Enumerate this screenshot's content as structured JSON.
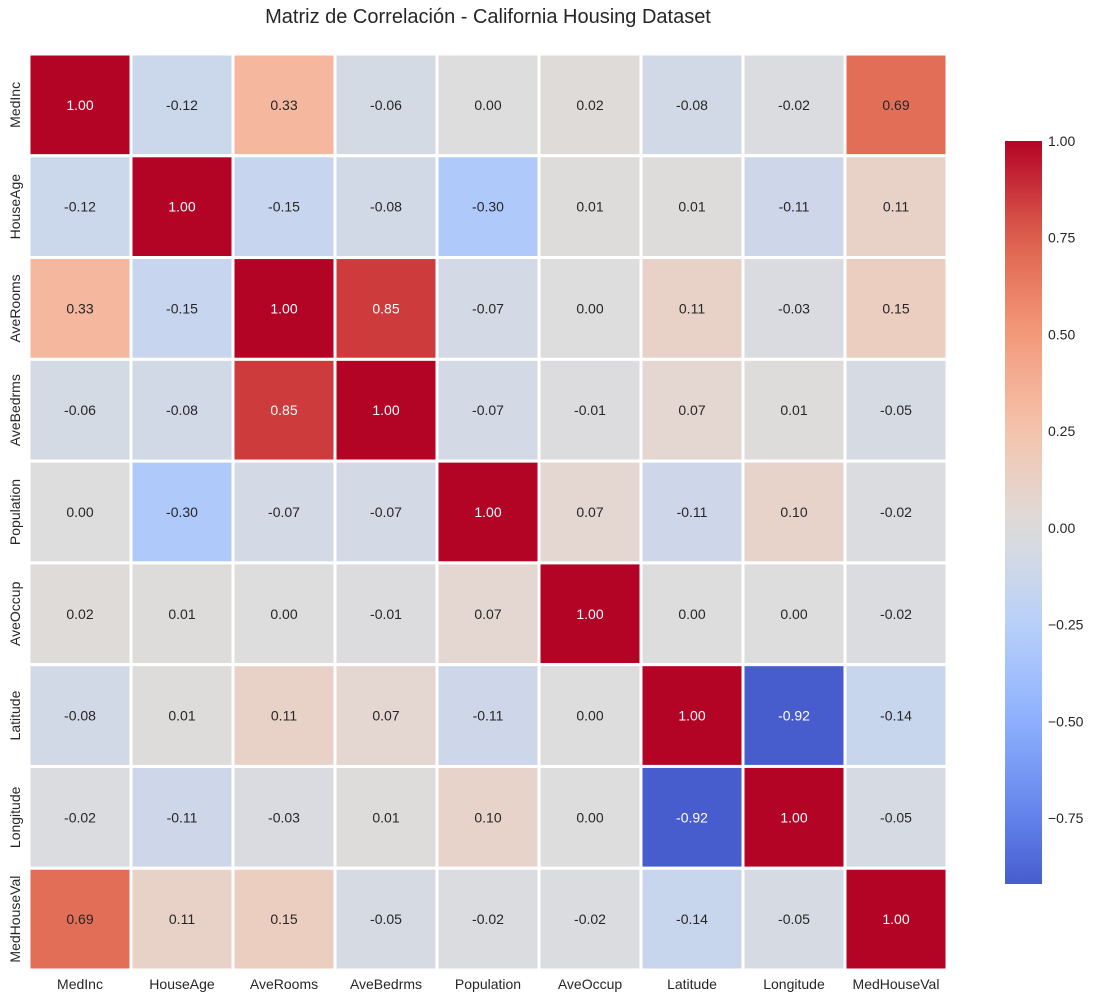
{
  "chart_data": {
    "type": "heatmap",
    "title": "Matriz de Correlación - California Housing Dataset",
    "xlabel": "",
    "ylabel": "",
    "x_labels": [
      "MedInc",
      "HouseAge",
      "AveRooms",
      "AveBedrms",
      "Population",
      "AveOccup",
      "Latitude",
      "Longitude",
      "MedHouseVal"
    ],
    "y_labels": [
      "MedInc",
      "HouseAge",
      "AveRooms",
      "AveBedrms",
      "Population",
      "AveOccup",
      "Latitude",
      "Longitude",
      "MedHouseVal"
    ],
    "values": [
      [
        1.0,
        -0.12,
        0.33,
        -0.06,
        0.0,
        0.02,
        -0.08,
        -0.02,
        0.69
      ],
      [
        -0.12,
        1.0,
        -0.15,
        -0.08,
        -0.3,
        0.01,
        0.01,
        -0.11,
        0.11
      ],
      [
        0.33,
        -0.15,
        1.0,
        0.85,
        -0.07,
        -0.0,
        0.11,
        -0.03,
        0.15
      ],
      [
        -0.06,
        -0.08,
        0.85,
        1.0,
        -0.07,
        -0.01,
        0.07,
        0.01,
        -0.05
      ],
      [
        0.0,
        -0.3,
        -0.07,
        -0.07,
        1.0,
        0.07,
        -0.11,
        0.1,
        -0.02
      ],
      [
        0.02,
        0.01,
        -0.0,
        -0.01,
        0.07,
        1.0,
        0.0,
        0.0,
        -0.02
      ],
      [
        -0.08,
        0.01,
        0.11,
        0.07,
        -0.11,
        0.0,
        1.0,
        -0.92,
        -0.14
      ],
      [
        -0.02,
        -0.11,
        -0.03,
        0.01,
        0.1,
        0.0,
        -0.92,
        1.0,
        -0.05
      ],
      [
        0.69,
        0.11,
        0.15,
        -0.05,
        -0.02,
        -0.02,
        -0.14,
        -0.05,
        1.0
      ]
    ],
    "value_format": "0.00",
    "colormap": "coolwarm",
    "color_range": [
      -0.92,
      1.0
    ],
    "colorbar": {
      "ticks": [
        1.0,
        0.75,
        0.5,
        0.25,
        0.0,
        -0.25,
        -0.5,
        -0.75
      ],
      "tick_labels": [
        "1.00",
        "0.75",
        "0.50",
        "0.25",
        "0.00",
        "−0.25",
        "−0.50",
        "−0.75"
      ],
      "placement": "right"
    },
    "colors": {
      "low": "#3b4cc0",
      "mid": "#dddddd",
      "high": "#b40426",
      "grid_line": "#ffffff",
      "text_dark": "#262626",
      "text_light": "#ffffff"
    }
  }
}
